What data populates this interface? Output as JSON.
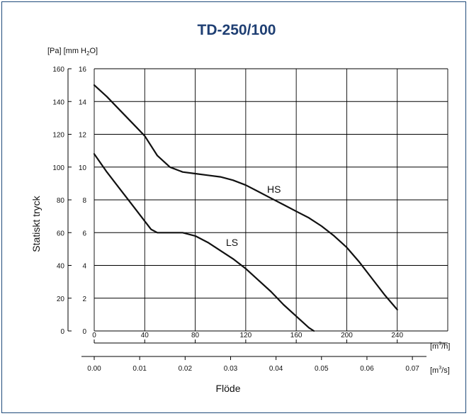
{
  "chart_data": {
    "type": "line",
    "title": "TD-250/100",
    "y_units_label": {
      "pre": "[Pa] [mm H",
      "sub": "2",
      "post": "O]"
    },
    "ylabel": "Statiskt tryck",
    "xlabel": "Flöde",
    "x_unit_m3h": {
      "pre": "[m",
      "sup": "3",
      "post": "/h]"
    },
    "x_unit_m3s": {
      "pre": "[m",
      "sup": "3",
      "post": "/s]"
    },
    "xlim": [
      0,
      280
    ],
    "ylim_pa": [
      0,
      160
    ],
    "y_ticks_pa": [
      "0",
      "20",
      "40",
      "60",
      "80",
      "100",
      "120",
      "140",
      "160"
    ],
    "y_ticks_mmh2o": [
      "0",
      "2",
      "4",
      "6",
      "8",
      "10",
      "12",
      "14",
      "16"
    ],
    "x_ticks_m3h": [
      "0",
      "40",
      "80",
      "120",
      "160",
      "200",
      "240"
    ],
    "x_ticks_m3s": [
      "0.00",
      "0.01",
      "0.02",
      "0.03",
      "0.04",
      "0.05",
      "0.06",
      "0.07"
    ],
    "grid": true,
    "series": [
      {
        "name": "HS",
        "x": [
          0,
          10,
          20,
          30,
          40,
          50,
          60,
          70,
          80,
          90,
          100,
          110,
          120,
          130,
          140,
          150,
          160,
          170,
          180,
          190,
          200,
          210,
          220,
          230,
          240
        ],
        "y": [
          150,
          143,
          135,
          127,
          119,
          107,
          100,
          97,
          96,
          95,
          94,
          92,
          89,
          85,
          81,
          77,
          73,
          69,
          64,
          58,
          51,
          42,
          32,
          22,
          13
        ]
      },
      {
        "name": "LS",
        "x": [
          0,
          10,
          20,
          30,
          40,
          45,
          50,
          60,
          70,
          80,
          90,
          100,
          110,
          120,
          130,
          140,
          150,
          160,
          170,
          174
        ],
        "y": [
          108,
          97,
          87,
          77,
          67,
          62,
          60,
          60,
          60,
          58,
          54,
          49,
          44,
          38,
          31,
          24,
          16,
          9,
          2,
          0
        ]
      }
    ],
    "curve_label_hs": "HS",
    "curve_label_ls": "LS"
  }
}
